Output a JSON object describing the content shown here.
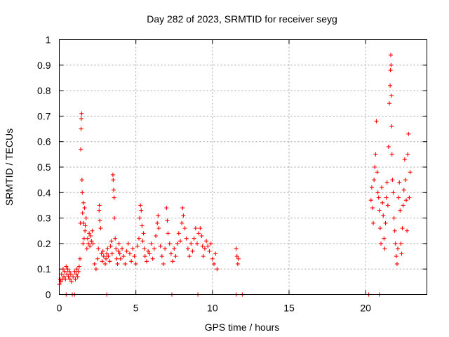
{
  "chart_data": {
    "type": "scatter",
    "title": "Day 282 of 2023, SRMTID for receiver seyg",
    "xlabel": "GPS time / hours",
    "ylabel": "SRMTID / TECUs",
    "xlim": [
      0,
      24
    ],
    "ylim": [
      0,
      1
    ],
    "xticks": [
      0,
      5,
      10,
      15,
      20
    ],
    "xtick_labels": [
      "0",
      "5",
      "10",
      "15",
      "20"
    ],
    "yticks": [
      0,
      0.1,
      0.2,
      0.3,
      0.4,
      0.5,
      0.6,
      0.7,
      0.8,
      0.9,
      1
    ],
    "ytick_labels": [
      "0",
      "0.1",
      "0.2",
      "0.3",
      "0.4",
      "0.5",
      "0.6",
      "0.7",
      "0.8",
      "0.9",
      "1"
    ],
    "grid": true,
    "marker": "+",
    "color": "#ff0000",
    "series": [
      {
        "name": "SRMTID",
        "points": [
          [
            0.0,
            0.04
          ],
          [
            0.05,
            0.06
          ],
          [
            0.1,
            0.05
          ],
          [
            0.15,
            0.08
          ],
          [
            0.2,
            0.06
          ],
          [
            0.25,
            0.1
          ],
          [
            0.3,
            0.07
          ],
          [
            0.35,
            0.09
          ],
          [
            0.4,
            0.06
          ],
          [
            0.45,
            0.11
          ],
          [
            0.5,
            0.08
          ],
          [
            0.55,
            0.1
          ],
          [
            0.6,
            0.07
          ],
          [
            0.65,
            0.09
          ],
          [
            0.7,
            0.06
          ],
          [
            0.75,
            0.08
          ],
          [
            0.8,
            0.05
          ],
          [
            0.9,
            0.07
          ],
          [
            1.0,
            0.09
          ],
          [
            1.05,
            0.06
          ],
          [
            1.1,
            0.08
          ],
          [
            1.15,
            0.1
          ],
          [
            1.2,
            0.07
          ],
          [
            1.25,
            0.09
          ],
          [
            1.3,
            0.11
          ],
          [
            1.35,
            0.14
          ],
          [
            1.38,
            0.28
          ],
          [
            1.4,
            0.57
          ],
          [
            1.42,
            0.65
          ],
          [
            1.44,
            0.69
          ],
          [
            1.46,
            0.71
          ],
          [
            1.48,
            0.45
          ],
          [
            1.5,
            0.4
          ],
          [
            1.52,
            0.32
          ],
          [
            1.55,
            0.2
          ],
          [
            1.58,
            0.36
          ],
          [
            1.6,
            0.28
          ],
          [
            1.62,
            0.22
          ],
          [
            1.65,
            0.34
          ],
          [
            1.68,
            0.25
          ],
          [
            1.7,
            0.27
          ],
          [
            1.75,
            0.3
          ],
          [
            1.8,
            0.18
          ],
          [
            1.85,
            0.22
          ],
          [
            1.9,
            0.2
          ],
          [
            1.95,
            0.24
          ],
          [
            2.0,
            0.19
          ],
          [
            2.05,
            0.23
          ],
          [
            2.1,
            0.21
          ],
          [
            2.15,
            0.25
          ],
          [
            2.2,
            0.2
          ],
          [
            2.3,
            0.12
          ],
          [
            2.4,
            0.1
          ],
          [
            2.5,
            0.14
          ],
          [
            2.55,
            0.18
          ],
          [
            2.6,
            0.33
          ],
          [
            2.62,
            0.35
          ],
          [
            2.65,
            0.29
          ],
          [
            2.7,
            0.26
          ],
          [
            2.75,
            0.16
          ],
          [
            2.8,
            0.13
          ],
          [
            2.85,
            0.17
          ],
          [
            2.9,
            0.15
          ],
          [
            3.0,
            0.12
          ],
          [
            3.05,
            0.14
          ],
          [
            3.1,
            0.16
          ],
          [
            3.15,
            0.18
          ],
          [
            3.2,
            0.15
          ],
          [
            3.3,
            0.13
          ],
          [
            3.35,
            0.19
          ],
          [
            3.4,
            0.21
          ],
          [
            3.45,
            0.16
          ],
          [
            3.5,
            0.47
          ],
          [
            3.52,
            0.45
          ],
          [
            3.55,
            0.41
          ],
          [
            3.58,
            0.38
          ],
          [
            3.6,
            0.3
          ],
          [
            3.65,
            0.22
          ],
          [
            3.7,
            0.18
          ],
          [
            3.75,
            0.14
          ],
          [
            3.8,
            0.12
          ],
          [
            3.85,
            0.17
          ],
          [
            3.9,
            0.2
          ],
          [
            3.95,
            0.16
          ],
          [
            4.0,
            0.14
          ],
          [
            4.1,
            0.18
          ],
          [
            4.2,
            0.15
          ],
          [
            4.3,
            0.12
          ],
          [
            4.4,
            0.17
          ],
          [
            4.5,
            0.2
          ],
          [
            4.6,
            0.16
          ],
          [
            4.7,
            0.13
          ],
          [
            4.8,
            0.18
          ],
          [
            4.9,
            0.15
          ],
          [
            5.0,
            0.12
          ],
          [
            5.1,
            0.19
          ],
          [
            5.2,
            0.22
          ],
          [
            5.25,
            0.3
          ],
          [
            5.3,
            0.35
          ],
          [
            5.35,
            0.33
          ],
          [
            5.4,
            0.27
          ],
          [
            5.45,
            0.21
          ],
          [
            5.5,
            0.24
          ],
          [
            5.55,
            0.18
          ],
          [
            5.6,
            0.15
          ],
          [
            5.7,
            0.13
          ],
          [
            5.8,
            0.17
          ],
          [
            5.9,
            0.16
          ],
          [
            6.0,
            0.2
          ],
          [
            6.1,
            0.14
          ],
          [
            6.2,
            0.18
          ],
          [
            6.3,
            0.23
          ],
          [
            6.4,
            0.28
          ],
          [
            6.45,
            0.31
          ],
          [
            6.5,
            0.26
          ],
          [
            6.6,
            0.19
          ],
          [
            6.7,
            0.15
          ],
          [
            6.8,
            0.12
          ],
          [
            6.9,
            0.18
          ],
          [
            7.0,
            0.34
          ],
          [
            7.05,
            0.29
          ],
          [
            7.1,
            0.24
          ],
          [
            7.2,
            0.2
          ],
          [
            7.3,
            0.16
          ],
          [
            7.4,
            0.13
          ],
          [
            7.5,
            0.18
          ],
          [
            7.6,
            0.15
          ],
          [
            7.7,
            0.2
          ],
          [
            7.8,
            0.24
          ],
          [
            7.9,
            0.21
          ],
          [
            8.0,
            0.28
          ],
          [
            8.05,
            0.34
          ],
          [
            8.1,
            0.31
          ],
          [
            8.2,
            0.26
          ],
          [
            8.3,
            0.22
          ],
          [
            8.4,
            0.18
          ],
          [
            8.5,
            0.15
          ],
          [
            8.6,
            0.2
          ],
          [
            8.7,
            0.17
          ],
          [
            8.8,
            0.22
          ],
          [
            8.9,
            0.26
          ],
          [
            9.0,
            0.2
          ],
          [
            9.1,
            0.24
          ],
          [
            9.2,
            0.26
          ],
          [
            9.3,
            0.23
          ],
          [
            9.35,
            0.19
          ],
          [
            9.4,
            0.15
          ],
          [
            9.5,
            0.18
          ],
          [
            9.6,
            0.21
          ],
          [
            9.7,
            0.19
          ],
          [
            9.8,
            0.17
          ],
          [
            9.9,
            0.2
          ],
          [
            10.0,
            0.14
          ],
          [
            10.1,
            0.12
          ],
          [
            10.2,
            0.16
          ],
          [
            10.3,
            0.1
          ],
          [
            11.55,
            0.18
          ],
          [
            11.6,
            0.15
          ],
          [
            11.65,
            0.12
          ],
          [
            11.7,
            0.14
          ],
          [
            20.35,
            0.37
          ],
          [
            20.4,
            0.42
          ],
          [
            20.45,
            0.34
          ],
          [
            20.5,
            0.28
          ],
          [
            20.55,
            0.45
          ],
          [
            20.6,
            0.5
          ],
          [
            20.65,
            0.55
          ],
          [
            20.7,
            0.68
          ],
          [
            20.75,
            0.48
          ],
          [
            20.8,
            0.4
          ],
          [
            20.85,
            0.38
          ],
          [
            20.9,
            0.33
          ],
          [
            20.95,
            0.26
          ],
          [
            21.0,
            0.2
          ],
          [
            21.05,
            0.42
          ],
          [
            21.1,
            0.36
          ],
          [
            21.15,
            0.31
          ],
          [
            21.2,
            0.22
          ],
          [
            21.25,
            0.18
          ],
          [
            21.3,
            0.28
          ],
          [
            21.35,
            0.38
          ],
          [
            21.4,
            0.44
          ],
          [
            21.45,
            0.35
          ],
          [
            21.5,
            0.58
          ],
          [
            21.55,
            0.75
          ],
          [
            21.6,
            0.82
          ],
          [
            21.62,
            0.88
          ],
          [
            21.64,
            0.94
          ],
          [
            21.66,
            0.9
          ],
          [
            21.68,
            0.78
          ],
          [
            21.7,
            0.66
          ],
          [
            21.72,
            0.55
          ],
          [
            21.75,
            0.45
          ],
          [
            21.8,
            0.4
          ],
          [
            21.85,
            0.3
          ],
          [
            21.9,
            0.25
          ],
          [
            21.95,
            0.2
          ],
          [
            22.0,
            0.15
          ],
          [
            22.05,
            0.12
          ],
          [
            22.1,
            0.18
          ],
          [
            22.15,
            0.38
          ],
          [
            22.2,
            0.44
          ],
          [
            22.25,
            0.33
          ],
          [
            22.3,
            0.2
          ],
          [
            22.35,
            0.16
          ],
          [
            22.4,
            0.26
          ],
          [
            22.45,
            0.35
          ],
          [
            22.5,
            0.41
          ],
          [
            22.55,
            0.53
          ],
          [
            22.6,
            0.45
          ],
          [
            22.65,
            0.37
          ],
          [
            22.7,
            0.25
          ],
          [
            22.75,
            0.55
          ],
          [
            22.8,
            0.63
          ],
          [
            22.85,
            0.38
          ],
          [
            22.9,
            0.48
          ]
        ]
      }
    ],
    "baseline_points": [
      0.45,
      0.85,
      1.0,
      3.1,
      7.35,
      9.05,
      11.55,
      11.95,
      20.2,
      20.9
    ]
  }
}
